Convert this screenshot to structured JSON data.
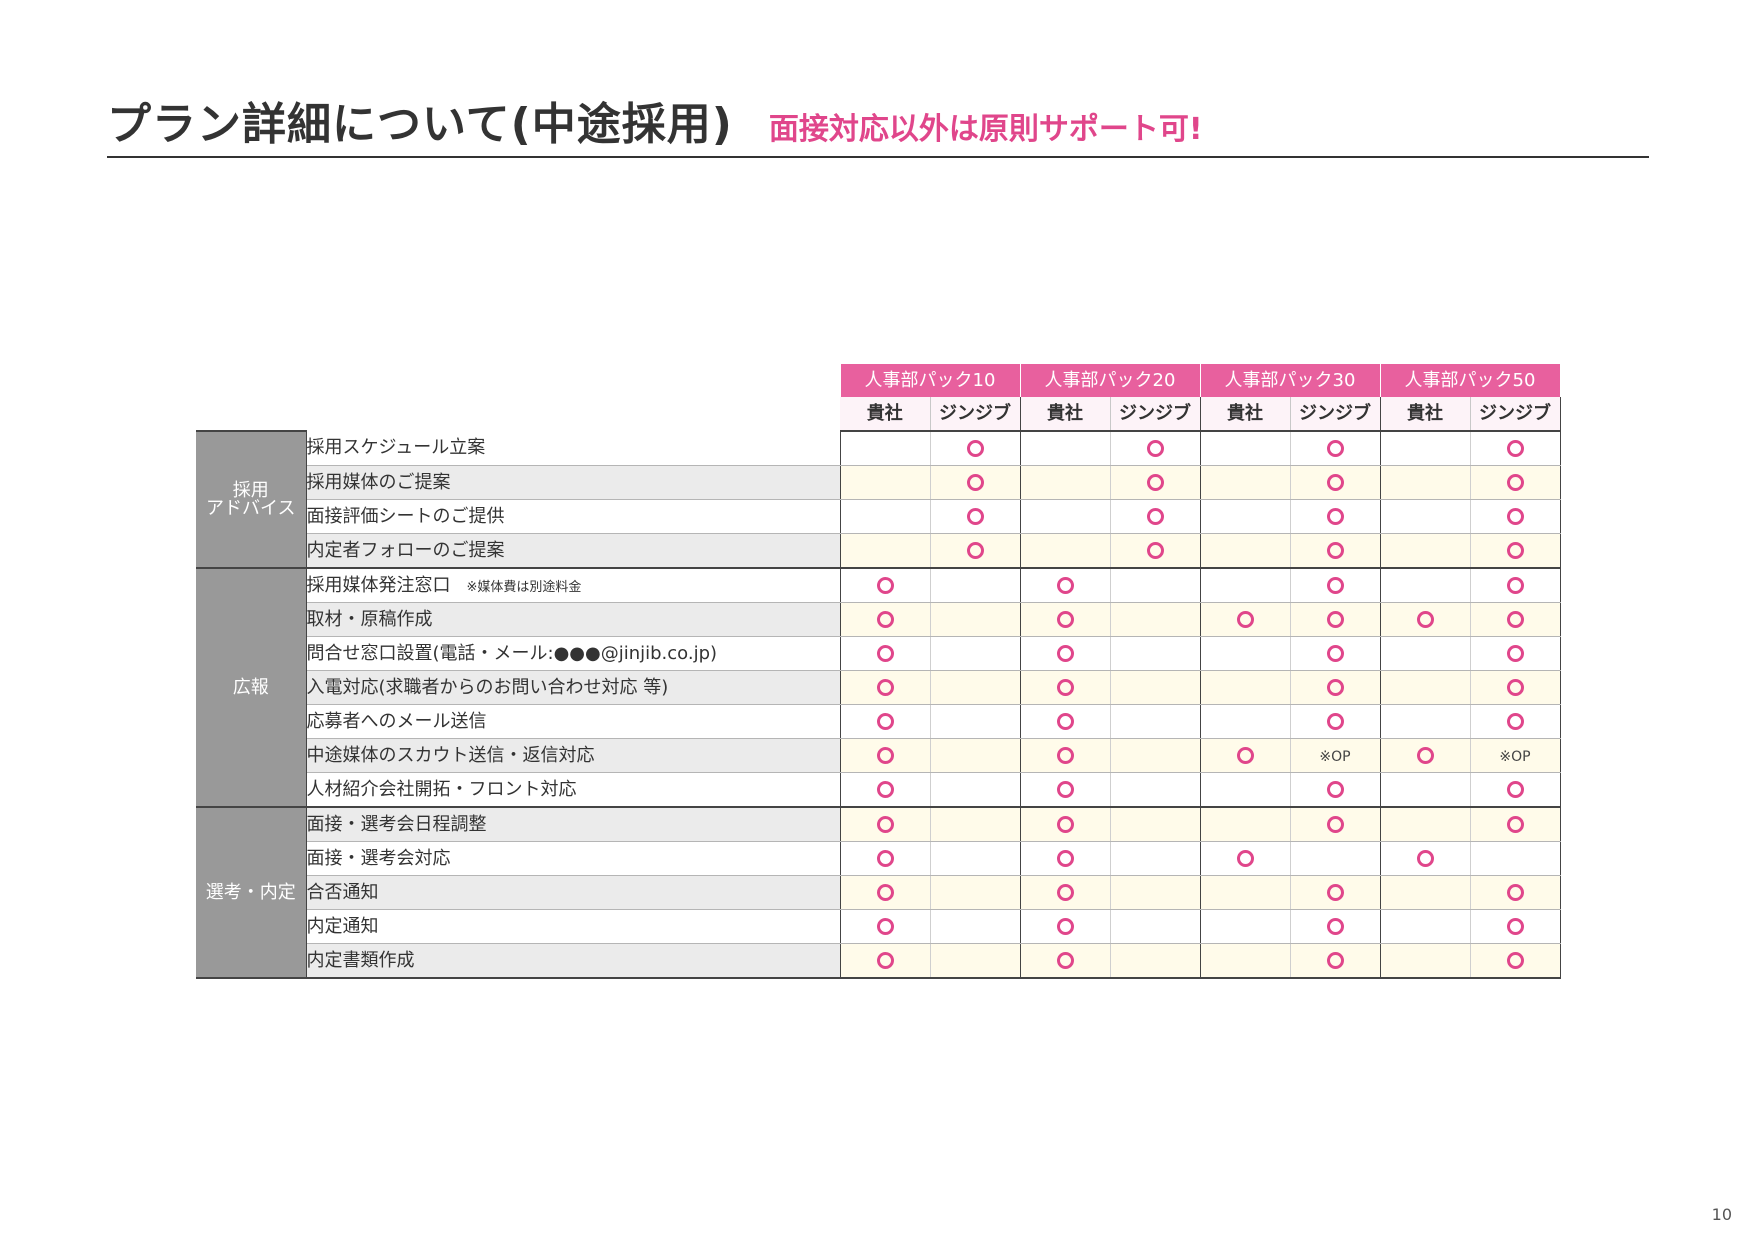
{
  "title": "プラン詳細について(中途採用)",
  "subtitle": "面接対応以外は原則サポート可!",
  "packs": [
    "人事部パック10",
    "人事部パック20",
    "人事部パック30",
    "人事部パック50"
  ],
  "party_headers": [
    "貴社",
    "ジンジブ"
  ],
  "groups": [
    {
      "name": "採用\nアドバイス",
      "rows": [
        {
          "label": "採用スケジュール立案",
          "marks": [
            "",
            "○",
            "",
            "○",
            "",
            "○",
            "",
            "○"
          ]
        },
        {
          "label": "採用媒体のご提案",
          "marks": [
            "",
            "○",
            "",
            "○",
            "",
            "○",
            "",
            "○"
          ]
        },
        {
          "label": "面接評価シートのご提供",
          "marks": [
            "",
            "○",
            "",
            "○",
            "",
            "○",
            "",
            "○"
          ]
        },
        {
          "label": "内定者フォローのご提案",
          "marks": [
            "",
            "○",
            "",
            "○",
            "",
            "○",
            "",
            "○"
          ]
        }
      ]
    },
    {
      "name": "広報",
      "rows": [
        {
          "label": "採用媒体発注窓口",
          "note": "※媒体費は別途料金",
          "marks": [
            "○",
            "",
            "○",
            "",
            "",
            "○",
            "",
            "○"
          ]
        },
        {
          "label": "取材・原稿作成",
          "marks": [
            "○",
            "",
            "○",
            "",
            "○",
            "○",
            "○",
            "○"
          ]
        },
        {
          "label": "問合せ窓口設置(電話・メール:●●●@jinjib.co.jp)",
          "marks": [
            "○",
            "",
            "○",
            "",
            "",
            "○",
            "",
            "○"
          ]
        },
        {
          "label": "入電対応(求職者からのお問い合わせ対応 等)",
          "marks": [
            "○",
            "",
            "○",
            "",
            "",
            "○",
            "",
            "○"
          ]
        },
        {
          "label": "応募者へのメール送信",
          "marks": [
            "○",
            "",
            "○",
            "",
            "",
            "○",
            "",
            "○"
          ]
        },
        {
          "label": "中途媒体のスカウト送信・返信対応",
          "marks": [
            "○",
            "",
            "○",
            "",
            "○",
            "※OP",
            "○",
            "※OP"
          ]
        },
        {
          "label": "人材紹介会社開拓・フロント対応",
          "marks": [
            "○",
            "",
            "○",
            "",
            "",
            "○",
            "",
            "○"
          ]
        }
      ]
    },
    {
      "name": "選考・内定",
      "rows": [
        {
          "label": "面接・選考会日程調整",
          "marks": [
            "○",
            "",
            "○",
            "",
            "",
            "○",
            "",
            "○"
          ]
        },
        {
          "label": "面接・選考会対応",
          "marks": [
            "○",
            "",
            "○",
            "",
            "○",
            "",
            "○",
            ""
          ]
        },
        {
          "label": "合否通知",
          "marks": [
            "○",
            "",
            "○",
            "",
            "",
            "○",
            "",
            "○"
          ]
        },
        {
          "label": "内定通知",
          "marks": [
            "○",
            "",
            "○",
            "",
            "",
            "○",
            "",
            "○"
          ]
        },
        {
          "label": "内定書類作成",
          "marks": [
            "○",
            "",
            "○",
            "",
            "",
            "○",
            "",
            "○"
          ]
        }
      ]
    }
  ],
  "page_number": "10",
  "colors": {
    "accent": "#e0468b",
    "pack_header": "#e8609e",
    "category_bg": "#999999",
    "row_tint": "#fffbea"
  }
}
